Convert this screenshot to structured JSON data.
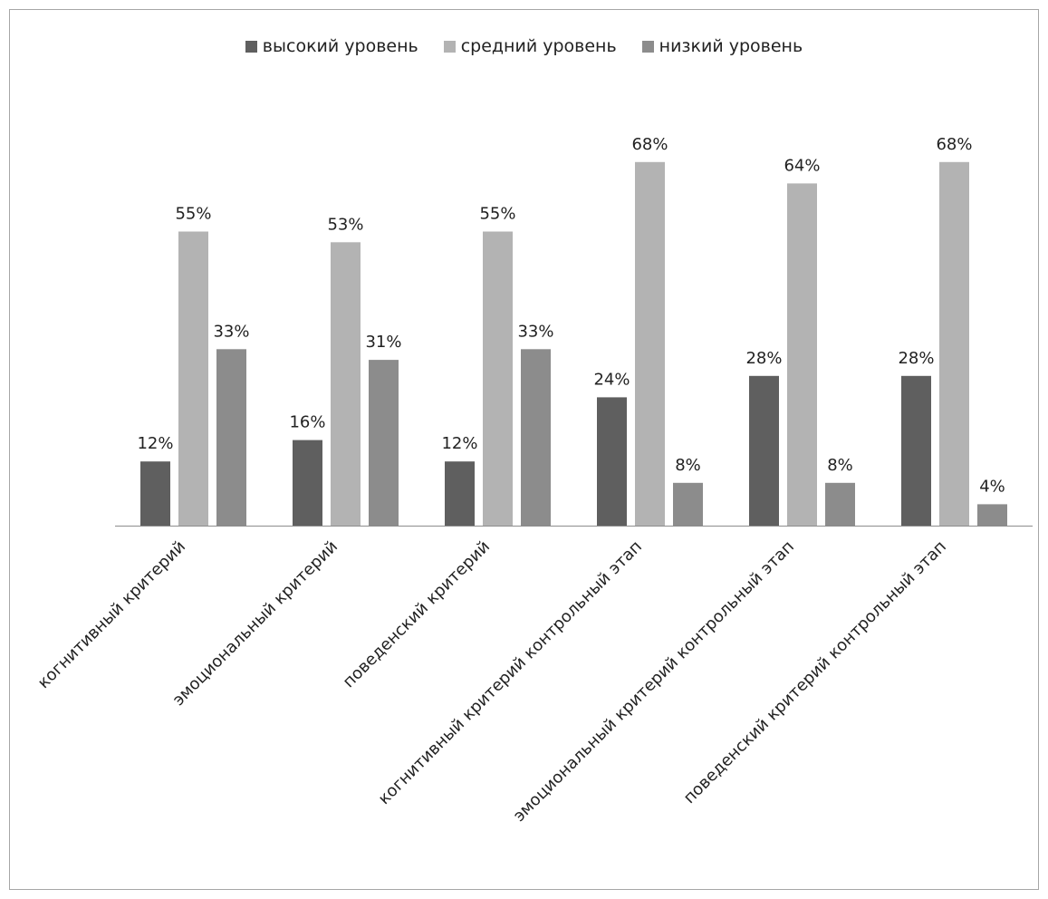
{
  "chart_data": {
    "type": "bar",
    "categories": [
      "когнитивный критерий",
      "эмоциональный критерий",
      "поведенский критерий",
      "когнитивный критерий контрольный этап",
      "эмоциональный критерий контрольный этап",
      "поведенский критерий контрольный этап"
    ],
    "series": [
      {
        "name": "высокий уровень",
        "color": "#5f5f5f",
        "values": [
          12,
          16,
          12,
          24,
          28,
          28
        ]
      },
      {
        "name": "средний уровень",
        "color": "#b3b3b3",
        "values": [
          55,
          53,
          55,
          68,
          64,
          68
        ]
      },
      {
        "name": "низкий уровень",
        "color": "#8c8c8c",
        "values": [
          33,
          31,
          33,
          8,
          8,
          4
        ]
      }
    ],
    "value_suffix": "%",
    "ylim": [
      0,
      100
    ],
    "grid": false,
    "legend_position": "top"
  }
}
